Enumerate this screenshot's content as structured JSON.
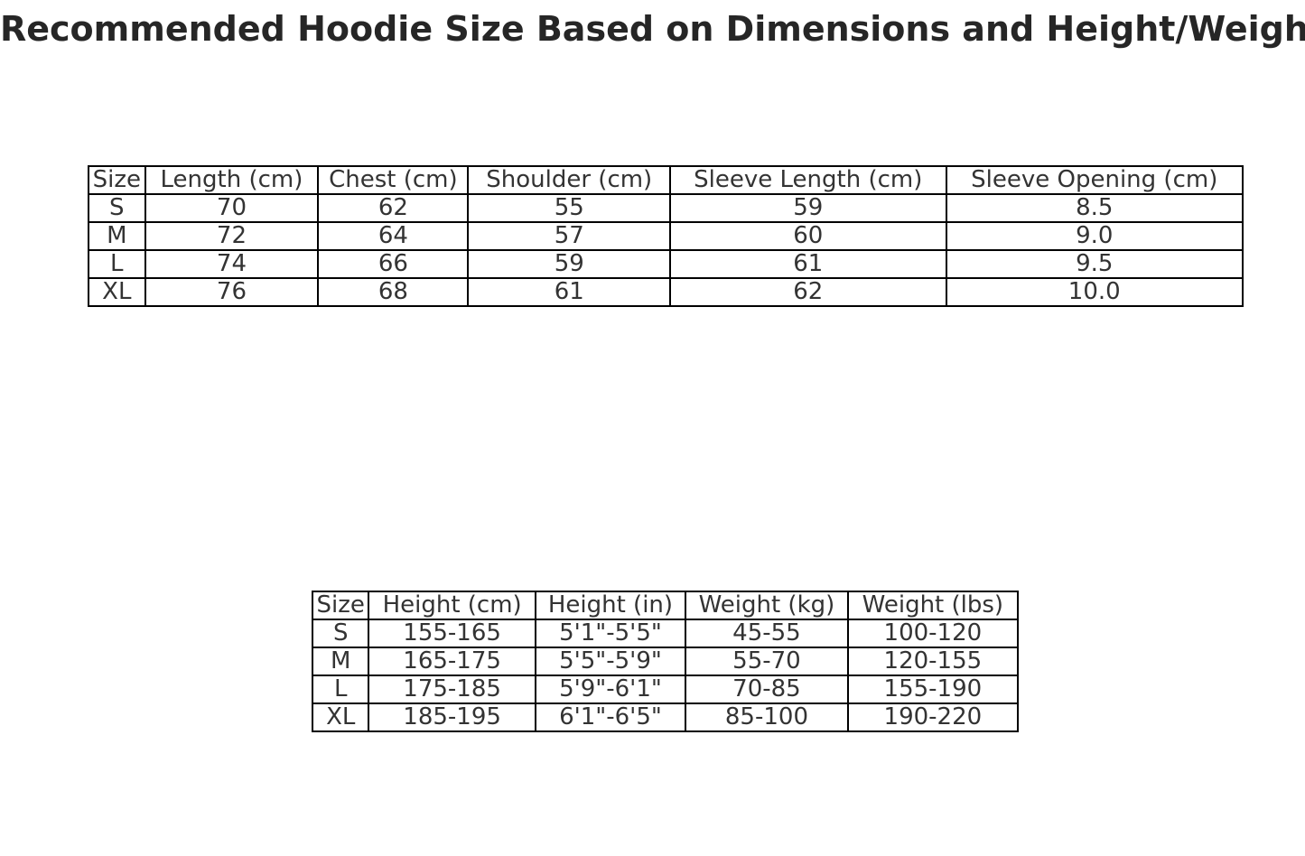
{
  "title": "Recommended Hoodie Size Based on Dimensions and Height/Weight",
  "colors": {
    "background": "#ffffff",
    "title_text": "#262626",
    "table_text": "#333333",
    "table_border": "#000000"
  },
  "chart_data": [
    {
      "type": "table",
      "description": "hoodie-dimensions-by-size",
      "headers": [
        "Size",
        "Length (cm)",
        "Chest (cm)",
        "Shoulder (cm)",
        "Sleeve Length (cm)",
        "Sleeve Opening (cm)"
      ],
      "rows": [
        [
          "S",
          "70",
          "62",
          "55",
          "59",
          "8.5"
        ],
        [
          "M",
          "72",
          "64",
          "57",
          "60",
          "9.0"
        ],
        [
          "L",
          "74",
          "66",
          "59",
          "61",
          "9.5"
        ],
        [
          "XL",
          "76",
          "68",
          "61",
          "62",
          "10.0"
        ]
      ]
    },
    {
      "type": "table",
      "description": "recommended-size-by-height-weight",
      "headers": [
        "Size",
        "Height (cm)",
        "Height (in)",
        "Weight (kg)",
        "Weight (lbs)"
      ],
      "rows": [
        [
          "S",
          "155-165",
          "5'1\"-5'5\"",
          "45-55",
          "100-120"
        ],
        [
          "M",
          "165-175",
          "5'5\"-5'9\"",
          "55-70",
          "120-155"
        ],
        [
          "L",
          "175-185",
          "5'9\"-6'1\"",
          "70-85",
          "155-190"
        ],
        [
          "XL",
          "185-195",
          "6'1\"-6'5\"",
          "85-100",
          "190-220"
        ]
      ]
    }
  ]
}
